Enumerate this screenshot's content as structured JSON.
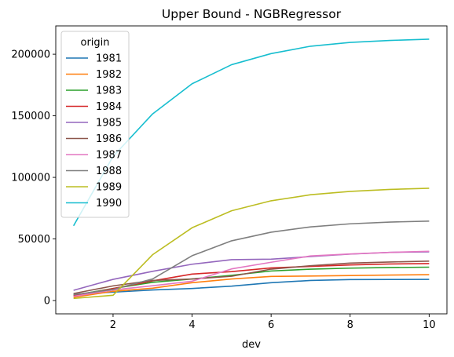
{
  "chart_data": {
    "type": "line",
    "title": "Upper Bound - NGBRegressor",
    "xlabel": "dev",
    "ylabel": "",
    "x": [
      1,
      2,
      3,
      4,
      5,
      6,
      7,
      8,
      9,
      10
    ],
    "xlim": [
      0.55,
      10.45
    ],
    "ylim": [
      -10800,
      223000
    ],
    "xticks": [
      2,
      4,
      6,
      8,
      10
    ],
    "yticks": [
      0,
      50000,
      100000,
      150000,
      200000
    ],
    "grid": false,
    "legend": {
      "title": "origin",
      "placement": "top-left"
    },
    "series": [
      {
        "name": "1981",
        "color": "#1f77b4",
        "values": [
          5200,
          6800,
          8600,
          9800,
          11700,
          14500,
          16300,
          17000,
          17100,
          17200
        ]
      },
      {
        "name": "1982",
        "color": "#ff7f0e",
        "values": [
          2600,
          7500,
          10000,
          14500,
          17500,
          19600,
          19900,
          20300,
          20700,
          21000
        ]
      },
      {
        "name": "1983",
        "color": "#2ca02c",
        "values": [
          4300,
          9800,
          14800,
          17500,
          20500,
          24000,
          25500,
          26300,
          26800,
          27100
        ]
      },
      {
        "name": "1984",
        "color": "#d62728",
        "values": [
          3800,
          9700,
          16000,
          21500,
          23500,
          26500,
          27700,
          28900,
          29700,
          30000
        ]
      },
      {
        "name": "1985",
        "color": "#9467bd",
        "values": [
          8300,
          17200,
          23700,
          29500,
          33200,
          33600,
          35700,
          37700,
          39100,
          39600
        ]
      },
      {
        "name": "1986",
        "color": "#8c564b",
        "values": [
          5700,
          11900,
          16300,
          17500,
          19700,
          25500,
          28300,
          30400,
          31300,
          32000
        ]
      },
      {
        "name": "1987",
        "color": "#e377c2",
        "values": [
          3400,
          8600,
          12000,
          15700,
          25700,
          31100,
          36200,
          37800,
          39100,
          40000
        ]
      },
      {
        "name": "1988",
        "color": "#7f7f7f",
        "values": [
          4800,
          9000,
          17500,
          36400,
          48500,
          55500,
          59800,
          62300,
          63700,
          64500
        ]
      },
      {
        "name": "1989",
        "color": "#bcbd22",
        "values": [
          1700,
          4300,
          37200,
          59100,
          72900,
          81000,
          85900,
          88600,
          90200,
          91200
        ]
      },
      {
        "name": "1990",
        "color": "#17becf",
        "values": [
          60700,
          117000,
          151500,
          176000,
          191500,
          200500,
          206500,
          209600,
          211200,
          212200
        ]
      }
    ]
  }
}
